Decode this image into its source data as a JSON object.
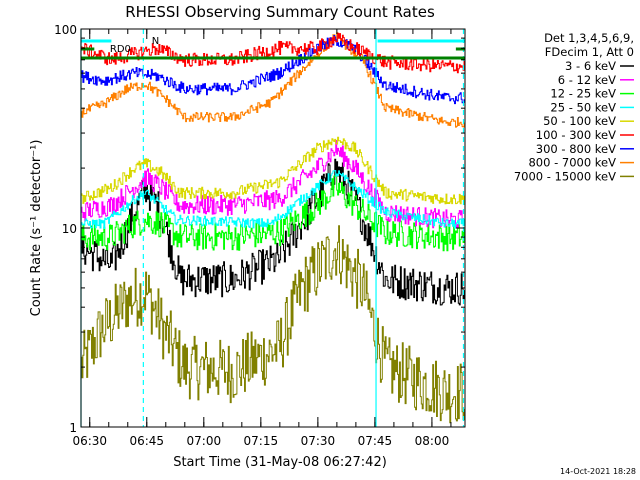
{
  "chart_data": {
    "type": "line",
    "title": "RHESSI Observing Summary Count Rates",
    "xlabel": "Start Time (31-May-08 06:27:42)",
    "ylabel": "Count Rate (s⁻¹ detector⁻¹)",
    "y_scale": "log",
    "ylim": [
      1,
      100
    ],
    "xlim_minutes": [
      0,
      101
    ],
    "x_tick_labels": [
      "06:30",
      "06:45",
      "07:00",
      "07:15",
      "07:30",
      "07:45",
      "08:00"
    ],
    "y_tick_labels": [
      "1",
      "10",
      "100"
    ],
    "legend_header": [
      "Det 1,3,4,5,6,9,",
      "FDecim 1, Att 0"
    ],
    "legend_position": "right",
    "timestamp": "14-Oct-2021 18:28",
    "annotations": {
      "flag_n": "N",
      "flag_rd0": "RD0"
    },
    "colors": {
      "3-6": "#000000",
      "6-12": "#ff00ff",
      "12-25": "#00ff00",
      "25-50": "#00ffff",
      "50-100": "#d8d800",
      "100-300": "#ff0000",
      "300-800": "#0000ff",
      "800-7000": "#ff8000",
      "7000-15000": "#808000",
      "rd0": "#008000",
      "n_flag": "#00ffff"
    },
    "series": [
      {
        "name": "3 - 6 keV",
        "key": "3-6",
        "points": [
          [
            0,
            8
          ],
          [
            8,
            6.5
          ],
          [
            14,
            12
          ],
          [
            17,
            16
          ],
          [
            21,
            12
          ],
          [
            26,
            5.5
          ],
          [
            40,
            5.5
          ],
          [
            52,
            7
          ],
          [
            62,
            14
          ],
          [
            67,
            20
          ],
          [
            72,
            14
          ],
          [
            80,
            5.5
          ],
          [
            96,
            5
          ]
        ]
      },
      {
        "name": "6 - 12 keV",
        "key": "6-12",
        "points": [
          [
            0,
            12
          ],
          [
            8,
            13
          ],
          [
            14,
            16
          ],
          [
            17,
            18
          ],
          [
            21,
            16
          ],
          [
            26,
            13
          ],
          [
            40,
            13
          ],
          [
            52,
            14
          ],
          [
            62,
            20
          ],
          [
            67,
            25
          ],
          [
            72,
            20
          ],
          [
            80,
            12
          ],
          [
            96,
            11
          ]
        ]
      },
      {
        "name": "12 - 25 keV",
        "key": "12-25",
        "points": [
          [
            0,
            9
          ],
          [
            8,
            9
          ],
          [
            14,
            10.5
          ],
          [
            17,
            11
          ],
          [
            21,
            10.5
          ],
          [
            26,
            9
          ],
          [
            40,
            9
          ],
          [
            52,
            9.5
          ],
          [
            62,
            13
          ],
          [
            67,
            16
          ],
          [
            72,
            13
          ],
          [
            80,
            9.5
          ],
          [
            96,
            9
          ]
        ]
      },
      {
        "name": "25 - 50 keV",
        "key": "25-50",
        "points": [
          [
            0,
            10.5
          ],
          [
            6,
            10.5
          ],
          [
            11,
            12.5
          ],
          [
            14,
            14
          ],
          [
            17,
            15
          ],
          [
            21,
            13
          ],
          [
            25,
            11
          ],
          [
            50,
            10.5
          ],
          [
            56,
            13
          ],
          [
            62,
            16
          ],
          [
            67,
            19
          ],
          [
            72,
            16
          ],
          [
            80,
            12
          ],
          [
            96,
            10.5
          ]
        ]
      },
      {
        "name": "50 - 100 keV",
        "key": "50-100",
        "points": [
          [
            0,
            14
          ],
          [
            8,
            16
          ],
          [
            14,
            20
          ],
          [
            17,
            21
          ],
          [
            21,
            19
          ],
          [
            26,
            15
          ],
          [
            40,
            15
          ],
          [
            52,
            17
          ],
          [
            62,
            25
          ],
          [
            67,
            28
          ],
          [
            72,
            25
          ],
          [
            80,
            15
          ],
          [
            96,
            14
          ]
        ]
      },
      {
        "name": "100 - 300 keV",
        "key": "100-300",
        "points": [
          [
            0,
            80
          ],
          [
            8,
            70
          ],
          [
            14,
            75
          ],
          [
            20,
            80
          ],
          [
            27,
            70
          ],
          [
            40,
            70
          ],
          [
            52,
            80
          ],
          [
            62,
            80
          ],
          [
            67,
            90
          ],
          [
            72,
            80
          ],
          [
            80,
            68
          ],
          [
            96,
            65
          ]
        ]
      },
      {
        "name": "300 - 800 keV",
        "key": "300-800",
        "points": [
          [
            0,
            58
          ],
          [
            6,
            55
          ],
          [
            14,
            60
          ],
          [
            20,
            58
          ],
          [
            27,
            50
          ],
          [
            40,
            50
          ],
          [
            52,
            60
          ],
          [
            62,
            80
          ],
          [
            67,
            88
          ],
          [
            72,
            80
          ],
          [
            80,
            52
          ],
          [
            96,
            45
          ]
        ]
      },
      {
        "name": "800 - 7000 keV",
        "key": "800-7000",
        "points": [
          [
            0,
            38
          ],
          [
            6,
            42
          ],
          [
            12,
            50
          ],
          [
            17,
            53
          ],
          [
            22,
            45
          ],
          [
            27,
            36
          ],
          [
            40,
            36
          ],
          [
            50,
            43
          ],
          [
            60,
            68
          ],
          [
            67,
            92
          ],
          [
            74,
            70
          ],
          [
            80,
            40
          ],
          [
            96,
            34
          ]
        ]
      },
      {
        "name": "7000 - 15000 keV",
        "key": "7000-15000",
        "points": [
          [
            0,
            2
          ],
          [
            5,
            3
          ],
          [
            12,
            4.3
          ],
          [
            17,
            4.8
          ],
          [
            22,
            3
          ],
          [
            27,
            2
          ],
          [
            40,
            1.9
          ],
          [
            52,
            2.5
          ],
          [
            58,
            5
          ],
          [
            67,
            8
          ],
          [
            74,
            5
          ],
          [
            80,
            2
          ],
          [
            96,
            1.5
          ]
        ]
      }
    ]
  }
}
